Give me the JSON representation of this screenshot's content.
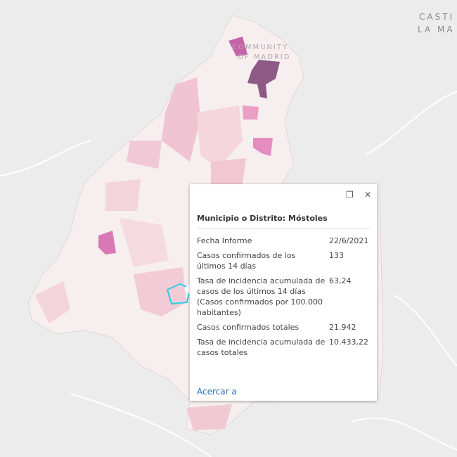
{
  "map": {
    "labels": [
      "CASTI",
      "LA MA",
      "COMMUNITY",
      "OF MADRID"
    ]
  },
  "popup": {
    "title": "Municipio o Distrito: Móstoles",
    "rows": [
      [
        "Fecha Informe",
        "22/6/2021"
      ],
      [
        "Casos confirmados de los últimos 14 días",
        "133"
      ],
      [
        "Tasa de incidencia acumulada de casos de los últimos 14 días (Casos confirmados por 100.000 habitantes)",
        "63,24"
      ],
      [
        "Casos confirmados totales",
        "21.942"
      ],
      [
        "Tasa de incidencia acumulada de casos totales",
        "10.433,22"
      ]
    ],
    "link": "Acercar a"
  }
}
